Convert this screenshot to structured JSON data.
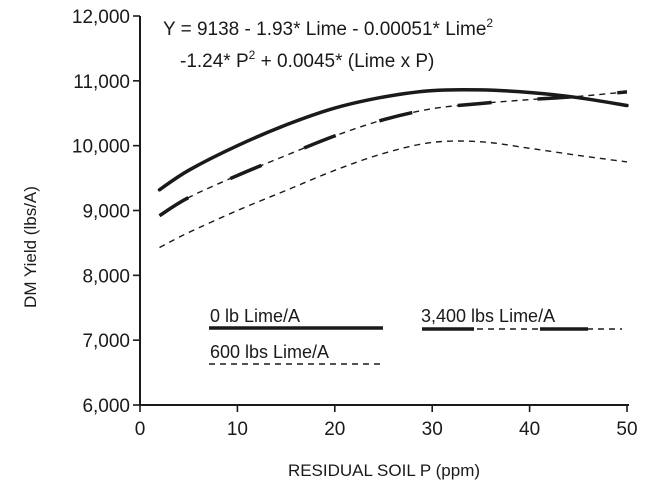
{
  "chart_data": {
    "type": "line",
    "xlabel": "RESIDUAL SOIL P (ppm)",
    "ylabel": "DM Yield (lbs/A)",
    "xlim": [
      0,
      50
    ],
    "ylim": [
      6000,
      12000
    ],
    "x_ticks": [
      0,
      10,
      20,
      30,
      40,
      50
    ],
    "x_tick_labels": [
      "0",
      "10",
      "20",
      "30",
      "40",
      "50"
    ],
    "y_ticks": [
      6000,
      7000,
      8000,
      9000,
      10000,
      11000,
      12000
    ],
    "y_tick_labels": [
      "6,000",
      "7,000",
      "8,000",
      "9,000",
      "10,000",
      "11,000",
      "12,000"
    ],
    "grid": false,
    "equation": {
      "line1_a": "Y = 9138 - 1.93* Lime - 0.00051* Lime",
      "line1_sup": "2",
      "line2_a": "-1.24* P",
      "line2_sup": "2",
      "line2_b": " + 0.0045* (Lime x P)"
    },
    "series": [
      {
        "name": "0 lb Lime/A",
        "style": "solid-thick",
        "x": [
          2,
          5,
          10,
          15,
          20,
          25,
          30,
          35,
          40,
          45,
          50
        ],
        "y": [
          9320,
          9620,
          10000,
          10320,
          10580,
          10750,
          10850,
          10860,
          10820,
          10740,
          10620
        ]
      },
      {
        "name": "3,400 lbs Lime/A",
        "style": "long-dash-thick",
        "x": [
          2,
          5,
          10,
          15,
          20,
          25,
          30,
          35,
          40,
          45,
          50
        ],
        "y": [
          8920,
          9200,
          9540,
          9850,
          10150,
          10400,
          10570,
          10650,
          10710,
          10760,
          10830
        ]
      },
      {
        "name": "600 lbs Lime/A",
        "style": "short-dash",
        "x": [
          2,
          5,
          10,
          15,
          20,
          25,
          30,
          35,
          40,
          45,
          50
        ],
        "y": [
          8430,
          8660,
          9000,
          9310,
          9620,
          9880,
          10050,
          10060,
          9960,
          9850,
          9750
        ]
      }
    ],
    "legend_placement": "bottom-center"
  }
}
